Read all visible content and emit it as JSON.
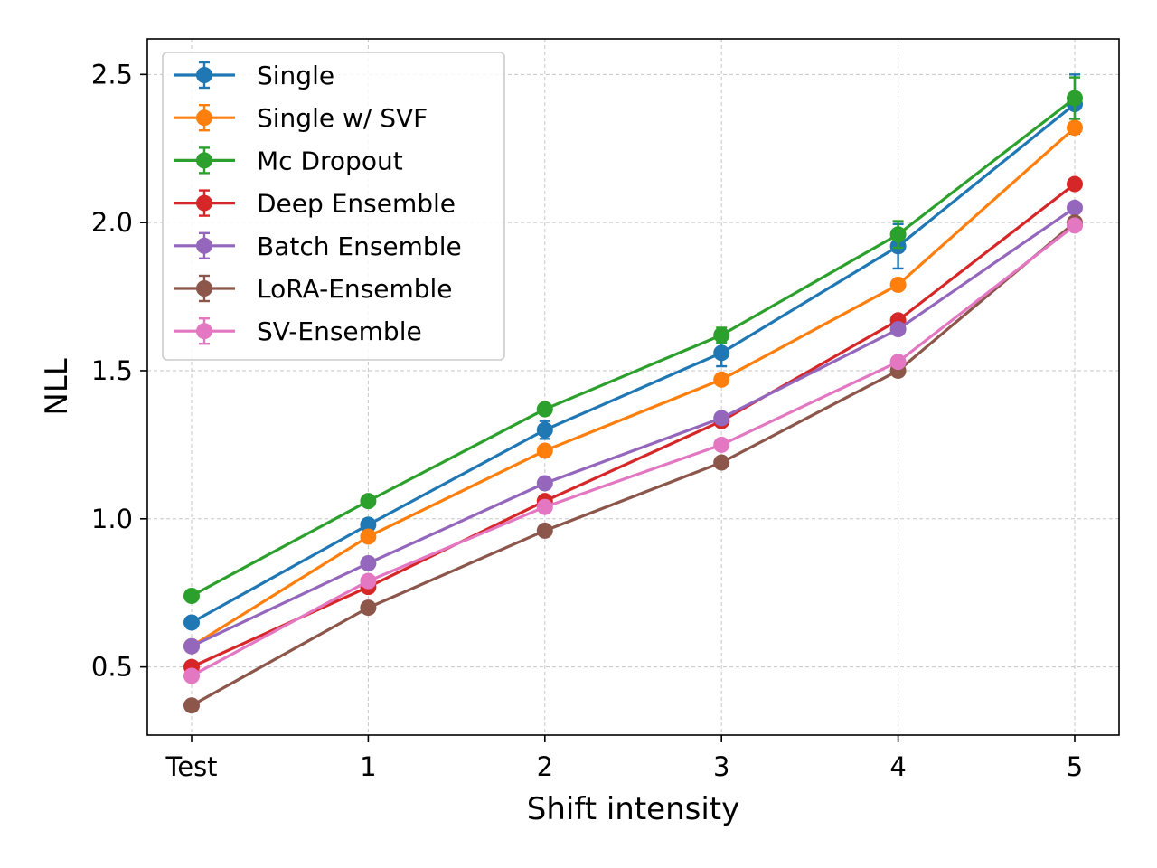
{
  "chart_data": {
    "type": "line",
    "title": "",
    "xlabel": "Shift intensity",
    "ylabel": "NLL",
    "categories": [
      "Test",
      "1",
      "2",
      "3",
      "4",
      "5"
    ],
    "ylim": [
      0.27,
      2.62
    ],
    "yticks": [
      "0.5",
      "1.0",
      "1.5",
      "2.0",
      "2.5"
    ],
    "grid": true,
    "legend_position": "top-left",
    "series": [
      {
        "name": "Single",
        "color": "#1f77b4",
        "values": [
          0.65,
          0.98,
          1.3,
          1.56,
          1.92,
          2.4
        ],
        "errors": [
          0.01,
          0.015,
          0.03,
          0.045,
          0.075,
          0.1
        ]
      },
      {
        "name": "Single w/ SVF",
        "color": "#ff7f0e",
        "values": [
          0.57,
          0.94,
          1.23,
          1.47,
          1.79,
          2.32
        ],
        "errors": [
          0.01,
          0.01,
          0.01,
          0.01,
          0.01,
          0.015
        ]
      },
      {
        "name": "Mc Dropout",
        "color": "#2ca02c",
        "values": [
          0.74,
          1.06,
          1.37,
          1.62,
          1.96,
          2.42
        ],
        "errors": [
          0.01,
          0.01,
          0.015,
          0.025,
          0.045,
          0.07
        ]
      },
      {
        "name": "Deep Ensemble",
        "color": "#d62728",
        "values": [
          0.5,
          0.77,
          1.06,
          1.33,
          1.67,
          2.13
        ],
        "errors": [
          0.005,
          0.005,
          0.005,
          0.005,
          0.005,
          0.005
        ]
      },
      {
        "name": "Batch Ensemble",
        "color": "#9467bd",
        "values": [
          0.57,
          0.85,
          1.12,
          1.34,
          1.64,
          2.05
        ],
        "errors": [
          0.01,
          0.01,
          0.01,
          0.01,
          0.01,
          0.01
        ]
      },
      {
        "name": "LoRA-Ensemble",
        "color": "#8c564b",
        "values": [
          0.37,
          0.7,
          0.96,
          1.19,
          1.5,
          2.0
        ],
        "errors": [
          0.005,
          0.005,
          0.005,
          0.005,
          0.005,
          0.005
        ]
      },
      {
        "name": "SV-Ensemble",
        "color": "#e377c2",
        "values": [
          0.47,
          0.79,
          1.04,
          1.25,
          1.53,
          1.99
        ],
        "errors": [
          0.005,
          0.005,
          0.005,
          0.005,
          0.005,
          0.005
        ]
      }
    ]
  }
}
